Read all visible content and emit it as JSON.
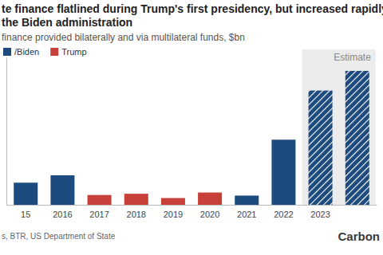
{
  "chart_data": {
    "type": "bar",
    "title": [
      "te finance flatlined during Trump's first presidency, but increased rapidly",
      "the Biden administration"
    ],
    "subtitle": "finance provided bilaterally and via multilateral funds, $bn",
    "categories": [
      "15",
      "2016",
      "2017",
      "2018",
      "2019",
      "2020",
      "2021",
      "2022",
      "2023",
      null
    ],
    "series": [
      {
        "name": "/Biden",
        "color": "#1d4b7d",
        "values": [
          1.8,
          2.4,
          null,
          null,
          null,
          null,
          0.75,
          5.3,
          9.3,
          10.9
        ]
      },
      {
        "name": "Trump",
        "color": "#c8403a",
        "values": [
          null,
          null,
          0.8,
          0.9,
          0.55,
          1.0,
          null,
          null,
          null,
          null
        ]
      }
    ],
    "ylim": [
      0,
      12
    ],
    "tick_labels": "x",
    "legend": "top-left",
    "annotations": [
      {
        "text": "Estimate",
        "from": 8,
        "to": 9
      }
    ],
    "source": "s, BTR, US Department of State",
    "logo": "Carbon"
  }
}
